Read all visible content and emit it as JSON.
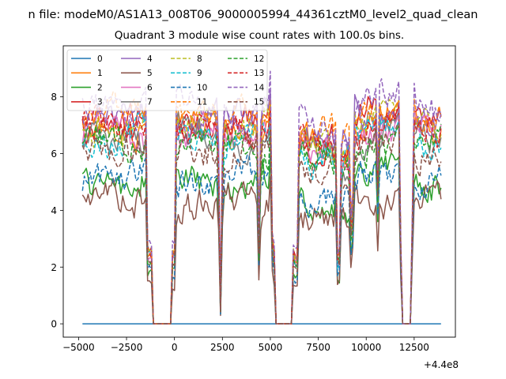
{
  "figure": {
    "suptitle": "n file: modeM0/AS1A13_008T06_9000005994_44361cztM0_level2_quad_clean"
  },
  "chart_data": {
    "type": "line",
    "title": "Quadrant 3 module wise count rates with 100.0s bins.",
    "xlabel": "",
    "ylabel": "",
    "offset_text": "+4.4e8",
    "xlim": [
      -5800,
      14650
    ],
    "ylim": [
      -0.47,
      9.8
    ],
    "x_ticks": [
      -5000,
      -2500,
      0,
      2500,
      5000,
      7500,
      10000,
      12500
    ],
    "x_tick_labels": [
      "−5000",
      "−2500",
      "0",
      "2500",
      "5000",
      "7500",
      "10000",
      "12500"
    ],
    "y_ticks": [
      0,
      2,
      4,
      6,
      8
    ],
    "y_tick_labels": [
      "0",
      "2",
      "4",
      "6",
      "8"
    ],
    "x_range": [
      -4800,
      13850
    ],
    "gaps": [
      [
        -1150,
        -100
      ],
      [
        5250,
        6150
      ],
      [
        11850,
        12350
      ]
    ],
    "gap_edges": [
      [
        -1450,
        -1150
      ],
      [
        -100,
        80
      ],
      [
        5050,
        5250
      ],
      [
        6150,
        6400
      ],
      [
        11750,
        11850
      ],
      [
        12350,
        12420
      ]
    ],
    "dips": [
      {
        "x": 2400,
        "depth": 0.93,
        "width": 130
      },
      {
        "x": 4420,
        "depth": 0.78,
        "width": 90
      },
      {
        "x": 8550,
        "depth": 0.88,
        "width": 160
      },
      {
        "x": 9250,
        "depth": 0.95,
        "width": 90
      },
      {
        "x": 10600,
        "depth": 0.35,
        "width": 80
      }
    ],
    "peaks": [
      {
        "x": 5030,
        "amp": 1.2,
        "width": 120
      },
      {
        "x": 12380,
        "amp": 1.0,
        "width": 80
      }
    ],
    "legend_position": "upper-left",
    "series": [
      {
        "name": "0",
        "color": "#1f77b4",
        "style": "solid",
        "flat": true,
        "level": 0
      },
      {
        "name": "1",
        "color": "#ff7f0e",
        "style": "solid",
        "level": 6.9
      },
      {
        "name": "2",
        "color": "#2ca02c",
        "style": "solid",
        "level": 5.0
      },
      {
        "name": "3",
        "color": "#d62728",
        "style": "solid",
        "level": 7.1
      },
      {
        "name": "4",
        "color": "#9467bd",
        "style": "solid",
        "level": 7.2
      },
      {
        "name": "5",
        "color": "#8c564b",
        "style": "solid",
        "level": 4.2
      },
      {
        "name": "6",
        "color": "#e377c2",
        "style": "solid",
        "level": 6.6
      },
      {
        "name": "7",
        "color": "#7f7f7f",
        "style": "solid",
        "level": 6.5
      },
      {
        "name": "8",
        "color": "#bcbd22",
        "style": "dashed",
        "level": 7.0
      },
      {
        "name": "9",
        "color": "#17becf",
        "style": "dashed",
        "level": 6.6
      },
      {
        "name": "10",
        "color": "#1f77b4",
        "style": "dashed",
        "level": 5.1
      },
      {
        "name": "11",
        "color": "#ff7f0e",
        "style": "dashed",
        "level": 7.3
      },
      {
        "name": "12",
        "color": "#2ca02c",
        "style": "dashed",
        "level": 6.3
      },
      {
        "name": "13",
        "color": "#d62728",
        "style": "dashed",
        "level": 6.9
      },
      {
        "name": "14",
        "color": "#9467bd",
        "style": "dashed",
        "level": 7.7
      },
      {
        "name": "15",
        "color": "#8c564b",
        "style": "dashed",
        "level": 6.2
      }
    ]
  }
}
